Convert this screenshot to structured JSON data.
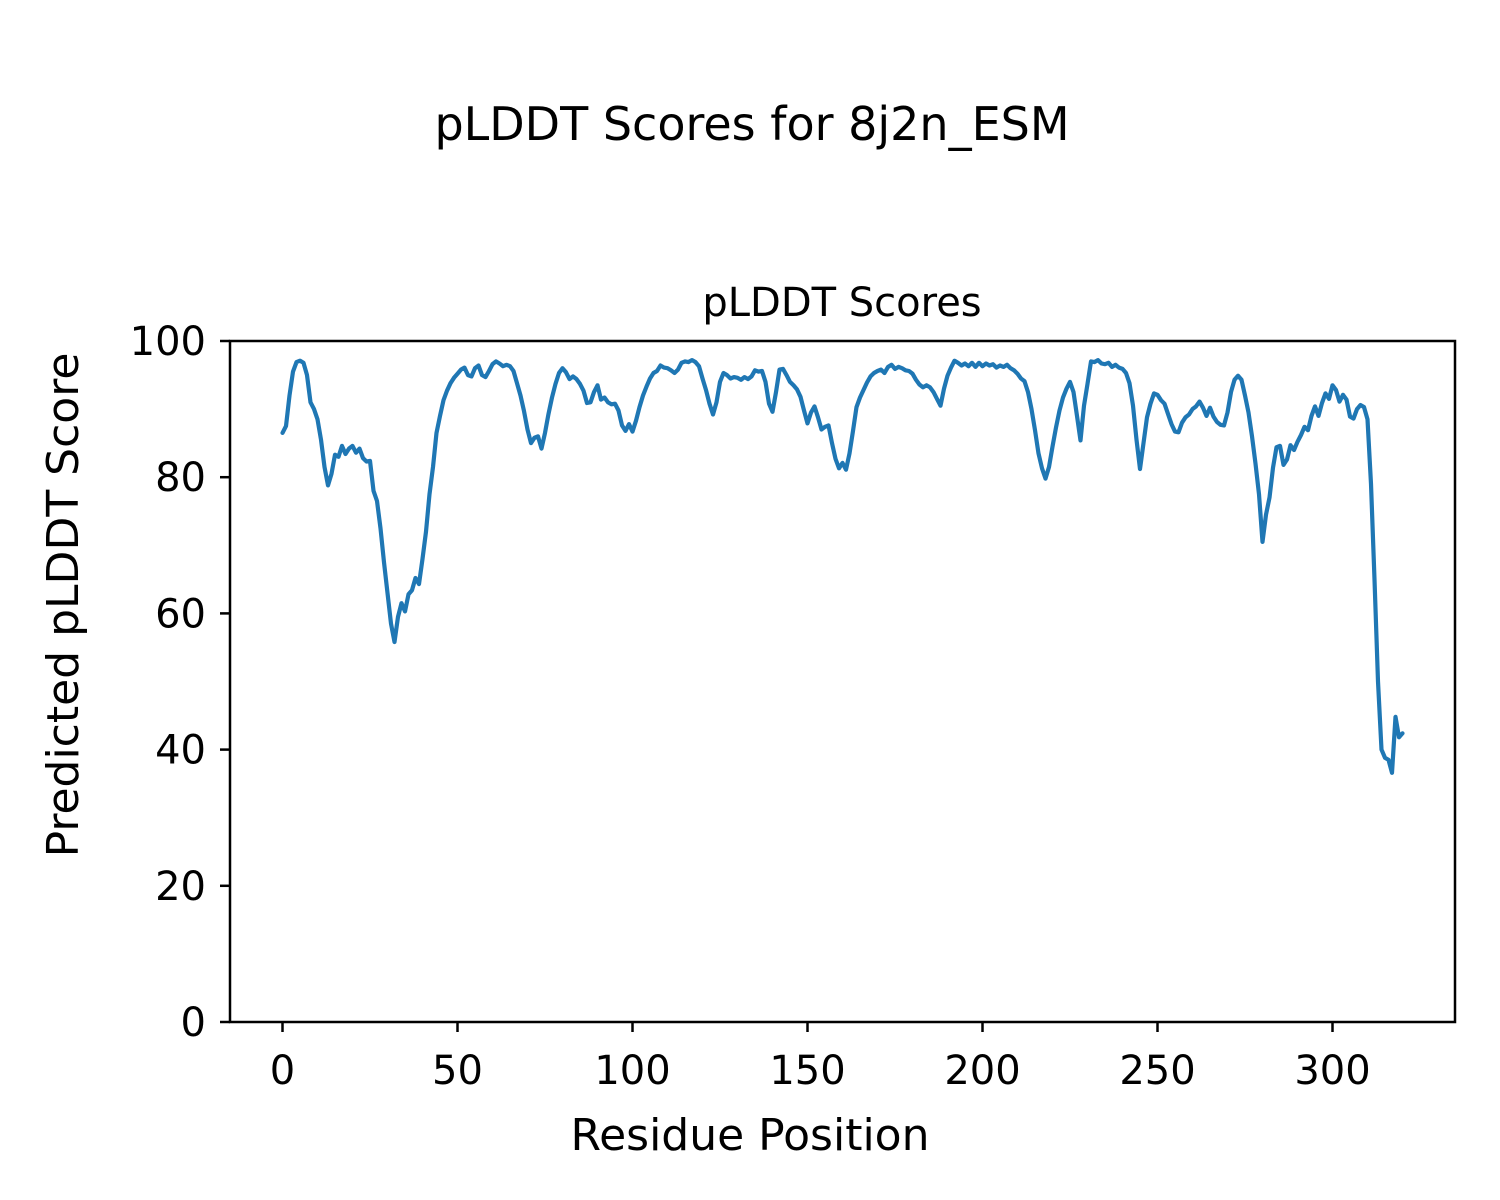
{
  "figure": {
    "suptitle": "pLDDT Scores for 8j2n_ESM"
  },
  "chart_data": {
    "type": "line",
    "title": "pLDDT Scores",
    "xlabel": "Residue Position",
    "ylabel": "Predicted pLDDT Score",
    "xlim": [
      -15,
      335
    ],
    "ylim": [
      0,
      100
    ],
    "xticks": [
      0,
      50,
      100,
      150,
      200,
      250,
      300
    ],
    "yticks": [
      0,
      20,
      40,
      60,
      80,
      100
    ],
    "grid": false,
    "legend": "none",
    "line_color": "#1f77b4",
    "series": [
      {
        "name": "pLDDT",
        "color": "#1f77b4",
        "x_start": 0,
        "x_step": 1,
        "n_points": 321,
        "y": [
          86.5,
          87.5,
          92,
          95.5,
          96.9,
          97.1,
          96.8,
          95,
          91,
          90,
          88.5,
          85.5,
          81.5,
          78.8,
          80.5,
          83.3,
          83,
          84.6,
          83.4,
          84.2,
          84.6,
          83.6,
          84.2,
          82.8,
          82.3,
          82.4,
          78,
          76.5,
          72.5,
          67.5,
          63,
          58.5,
          55.8,
          59.5,
          61.5,
          60.3,
          62.8,
          63.4,
          65.2,
          64.3,
          68,
          72,
          77.5,
          81.5,
          86.5,
          89,
          91.3,
          92.7,
          93.8,
          94.6,
          95.2,
          95.8,
          96.1,
          95,
          94.8,
          96,
          96.4,
          95,
          94.7,
          95.6,
          96.6,
          97,
          96.7,
          96.3,
          96.5,
          96.3,
          95.6,
          93.8,
          92,
          89.7,
          87,
          85,
          85.8,
          86,
          84.2,
          86.5,
          89.3,
          91.7,
          93.7,
          95.3,
          96,
          95.4,
          94.4,
          94.8,
          94.4,
          93.7,
          92.7,
          90.9,
          91,
          92.5,
          93.5,
          91.4,
          91.7,
          91,
          90.7,
          90.8,
          89.8,
          87.6,
          86.8,
          87.8,
          86.7,
          88.3,
          90.3,
          92,
          93.3,
          94.5,
          95.3,
          95.6,
          96.4,
          96.1,
          96,
          95.7,
          95.3,
          95.8,
          96.8,
          97,
          96.9,
          97.2,
          96.9,
          96.3,
          94.5,
          92.8,
          90.8,
          89.2,
          91,
          94,
          95.3,
          95,
          94.5,
          94.7,
          94.6,
          94.3,
          94.7,
          94.4,
          94.8,
          95.7,
          95.5,
          95.6,
          94,
          90.8,
          89.6,
          92.5,
          95.8,
          95.9,
          95,
          94,
          93.5,
          92.9,
          91.8,
          89.8,
          87.9,
          89.5,
          90.4,
          88.8,
          87,
          87.4,
          87.6,
          85,
          82.7,
          81.3,
          82.1,
          81.1,
          83.5,
          86.8,
          90.3,
          91.7,
          92.8,
          93.9,
          94.8,
          95.3,
          95.6,
          95.8,
          95.3,
          96.2,
          96.5,
          95.9,
          96.2,
          96,
          95.7,
          95.6,
          95.2,
          94.3,
          93.6,
          93.2,
          93.5,
          93.2,
          92.5,
          91.5,
          90.5,
          93,
          94.9,
          96.1,
          97.1,
          96.8,
          96.4,
          96.7,
          96.3,
          96.8,
          96.2,
          96.8,
          96.3,
          96.7,
          96.4,
          96.6,
          96.1,
          96.4,
          96.2,
          96.5,
          96,
          95.7,
          95.2,
          94.5,
          94.1,
          92.5,
          90,
          86.9,
          83.5,
          81.3,
          79.8,
          81.5,
          84.5,
          87.3,
          89.8,
          91.7,
          93,
          94,
          92.5,
          89,
          85.4,
          90.5,
          93.7,
          97,
          96.9,
          97.2,
          96.7,
          96.6,
          96.8,
          96.2,
          96.5,
          96.1,
          95.9,
          95.3,
          93.8,
          90.5,
          85.5,
          81.2,
          85,
          88.8,
          90.8,
          92.3,
          92.1,
          91.3,
          90.8,
          89.3,
          87.8,
          86.7,
          86.6,
          88,
          88.8,
          89.2,
          90,
          90.4,
          91.1,
          90.2,
          89,
          90.2,
          88.9,
          88.1,
          87.7,
          87.6,
          89.5,
          92.5,
          94.3,
          94.9,
          94.3,
          92,
          89.5,
          86,
          82,
          77.5,
          70.5,
          74.5,
          77,
          81.4,
          84.4,
          84.6,
          81.8,
          82.6,
          84.7,
          84,
          85.2,
          86.2,
          87.4,
          86.9,
          89,
          90.4,
          89,
          90.9,
          92.3,
          91.5,
          93.5,
          92.8,
          91.1,
          92.1,
          91.4,
          88.9,
          88.6,
          90,
          90.6,
          90.3,
          88.5,
          79,
          65,
          50,
          40,
          38.8,
          38.5,
          36.6,
          44.8,
          41.8,
          42.4
        ]
      }
    ]
  }
}
